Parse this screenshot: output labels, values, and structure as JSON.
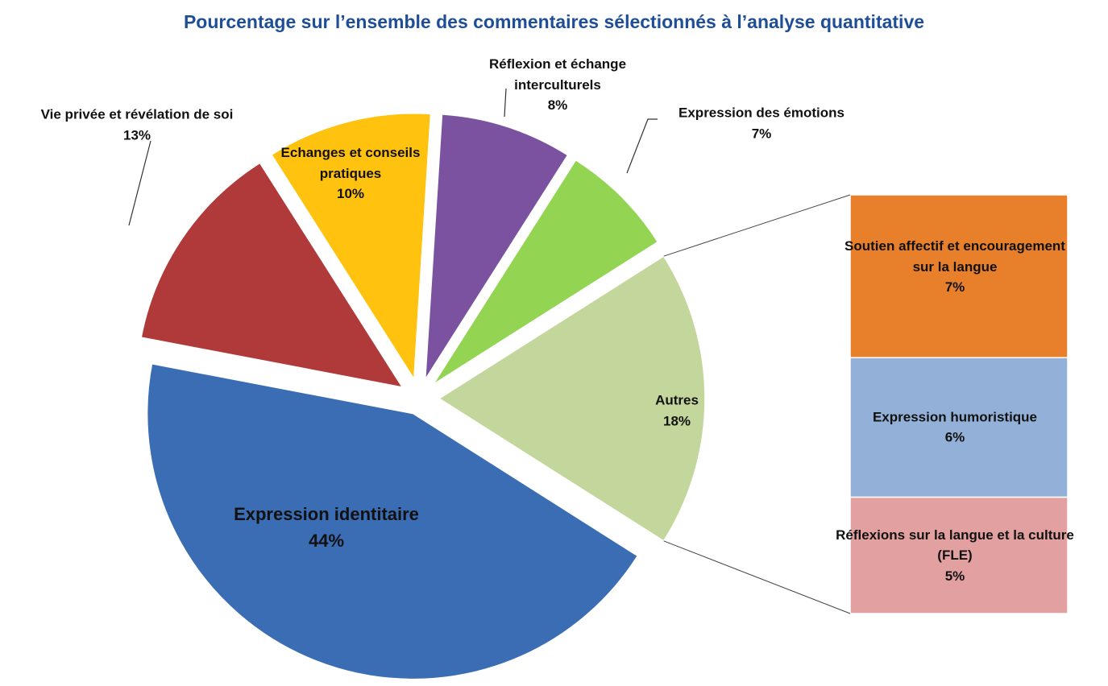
{
  "chart_data": {
    "type": "pie",
    "title": "Pourcentage sur l’ensemble des commentaires sélectionnés à l’analyse quantitative",
    "categories": [
      "Expression identitaire",
      "Vie privée et révélation de soi",
      "Echanges et conseils pratiques",
      "Réflexion et échange interculturels",
      "Expression des émotions",
      "Autres"
    ],
    "values": [
      44,
      13,
      10,
      8,
      7,
      18
    ],
    "value_labels": [
      "44%",
      "13%",
      "10%",
      "8%",
      "7%",
      "18%"
    ],
    "colors": [
      "#3a6db3",
      "#b0393a",
      "#ffc20e",
      "#7b52a0",
      "#93d452",
      "#c3d69b"
    ],
    "bar": {
      "categories": [
        "Soutien affectif et encouragement sur la langue",
        "Expression humoristique",
        "Réflexions sur la langue et la culture (FLE)"
      ],
      "values": [
        7,
        6,
        5
      ],
      "value_labels": [
        "7%",
        "6%",
        "5%"
      ],
      "colors": [
        "#e8802b",
        "#93b1d8",
        "#e3a0a0"
      ]
    }
  }
}
